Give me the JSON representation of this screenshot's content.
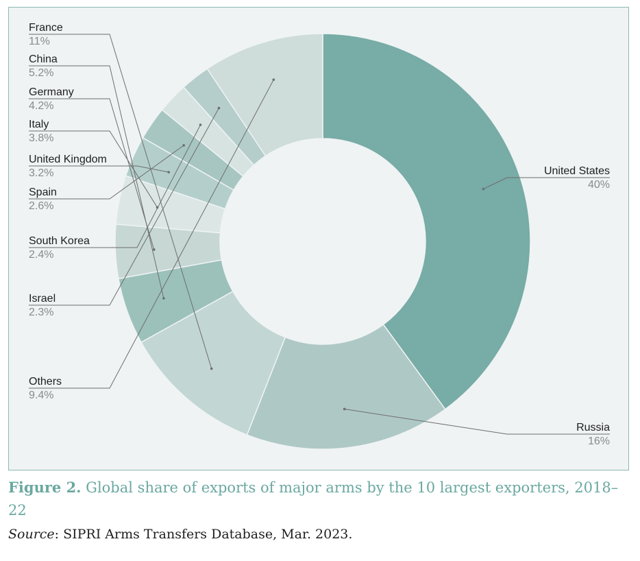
{
  "chart_data": {
    "type": "pie",
    "donut": true,
    "slices": [
      {
        "name": "United States",
        "value_label": "40%",
        "value": 40,
        "color": "#78aca6"
      },
      {
        "name": "Russia",
        "value_label": "16%",
        "value": 16,
        "color": "#aec8c6"
      },
      {
        "name": "France",
        "value_label": "11%",
        "value": 11,
        "color": "#c2d6d3"
      },
      {
        "name": "China",
        "value_label": "5.2%",
        "value": 5.2,
        "color": "#9cc1bb"
      },
      {
        "name": "Germany",
        "value_label": "4.2%",
        "value": 4.2,
        "color": "#c6d7d4"
      },
      {
        "name": "Italy",
        "value_label": "3.8%",
        "value": 3.8,
        "color": "#dce7e5"
      },
      {
        "name": "United Kingdom",
        "value_label": "3.2%",
        "value": 3.2,
        "color": "#b4cfcb"
      },
      {
        "name": "Spain",
        "value_label": "2.6%",
        "value": 2.6,
        "color": "#a7c6c1"
      },
      {
        "name": "South Korea",
        "value_label": "2.4%",
        "value": 2.4,
        "color": "#d6e3e1"
      },
      {
        "name": "Israel",
        "value_label": "2.3%",
        "value": 2.3,
        "color": "#b5cecb"
      },
      {
        "name": "Others",
        "value_label": "9.4%",
        "value": 9.4,
        "color": "#cedcda"
      }
    ]
  },
  "caption": {
    "label": "Figure 2.",
    "text": " Global share of exports of major arms by the 10 largest exporters, 2018–22"
  },
  "source": {
    "label": "Source",
    "text": ": SIPRI Arms Transfers Database, Mar. 2023."
  }
}
